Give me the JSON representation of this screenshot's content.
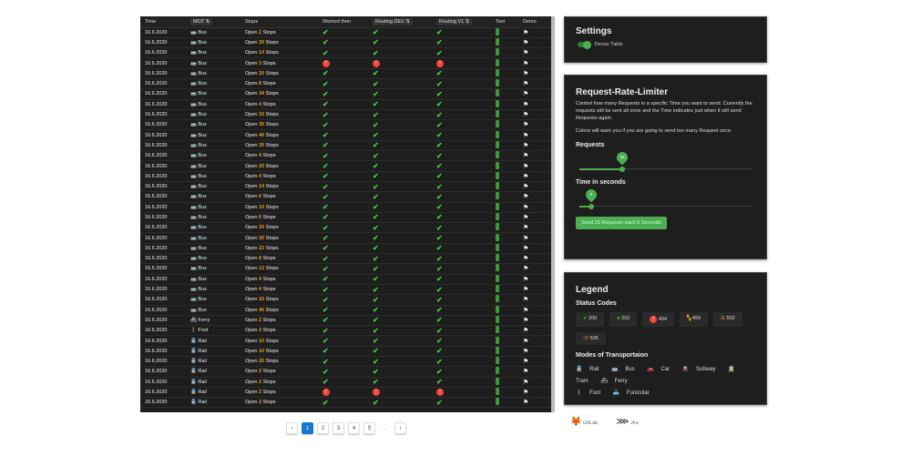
{
  "table": {
    "headers": [
      "Time",
      "MOT",
      "Stops",
      "Worked then",
      "Routing DEV",
      "Routing V1",
      "Test",
      "Demo"
    ],
    "open_label": "Open",
    "stops_label": "Stops",
    "rows": [
      [
        "16.6.2020",
        "Bus",
        2,
        "ok"
      ],
      [
        "16.6.2020",
        "Bus",
        20,
        "ok"
      ],
      [
        "16.6.2020",
        "Bus",
        14,
        "ok"
      ],
      [
        "16.6.2020",
        "Bus",
        3,
        "err"
      ],
      [
        "16.6.2020",
        "Bus",
        20,
        "ok"
      ],
      [
        "16.6.2020",
        "Bus",
        8,
        "ok"
      ],
      [
        "16.6.2020",
        "Bus",
        34,
        "ok"
      ],
      [
        "16.6.2020",
        "Bus",
        4,
        "ok"
      ],
      [
        "16.6.2020",
        "Bus",
        16,
        "ok"
      ],
      [
        "16.6.2020",
        "Bus",
        36,
        "ok"
      ],
      [
        "16.6.2020",
        "Bus",
        40,
        "ok"
      ],
      [
        "16.6.2020",
        "Bus",
        20,
        "ok"
      ],
      [
        "16.6.2020",
        "Bus",
        4,
        "ok"
      ],
      [
        "16.6.2020",
        "Bus",
        20,
        "ok"
      ],
      [
        "16.6.2020",
        "Bus",
        4,
        "ok"
      ],
      [
        "16.6.2020",
        "Bus",
        14,
        "ok"
      ],
      [
        "16.6.2020",
        "Bus",
        6,
        "ok"
      ],
      [
        "16.6.2020",
        "Bus",
        10,
        "ok"
      ],
      [
        "16.6.2020",
        "Bus",
        6,
        "ok"
      ],
      [
        "16.6.2020",
        "Bus",
        20,
        "ok"
      ],
      [
        "16.6.2020",
        "Bus",
        30,
        "ok"
      ],
      [
        "16.6.2020",
        "Bus",
        22,
        "ok"
      ],
      [
        "16.6.2020",
        "Bus",
        8,
        "ok"
      ],
      [
        "16.6.2020",
        "Bus",
        12,
        "ok"
      ],
      [
        "16.6.2020",
        "Bus",
        4,
        "ok"
      ],
      [
        "16.6.2020",
        "Bus",
        4,
        "ok"
      ],
      [
        "16.6.2020",
        "Bus",
        10,
        "ok"
      ],
      [
        "16.6.2020",
        "Bus",
        46,
        "ok"
      ],
      [
        "16.6.2020",
        "Ferry",
        2,
        "ok"
      ],
      [
        "16.6.2020",
        "Foot",
        3,
        "ok"
      ],
      [
        "16.6.2020",
        "Rail",
        10,
        "ok"
      ],
      [
        "16.6.2020",
        "Rail",
        10,
        "ok"
      ],
      [
        "16.6.2020",
        "Rail",
        20,
        "ok"
      ],
      [
        "16.6.2020",
        "Rail",
        2,
        "ok"
      ],
      [
        "16.6.2020",
        "Rail",
        2,
        "ok"
      ],
      [
        "16.6.2020",
        "Rail",
        2,
        "err"
      ],
      [
        "16.6.2020",
        "Rail",
        2,
        "ok"
      ]
    ]
  },
  "pagination": {
    "pages": [
      "1",
      "2",
      "3",
      "4",
      "5"
    ],
    "current": "1",
    "ellipsis": "..."
  },
  "settings": {
    "title": "Settings",
    "dense_label": "Dense Table",
    "dense_on": true
  },
  "limiter": {
    "title": "Request-Rate-Limiter",
    "desc1": "Control how many Requests in a specific Time you want to send. Currently the requests will be sent all once and the Time indicates just when it will send Requests again.",
    "desc2": "Colors will warn you if you are going to send too many Request once.",
    "requests_label": "Requests",
    "requests_value": "25",
    "requests_fraction": 0.25,
    "time_label": "Time in seconds",
    "time_value": "5",
    "time_fraction": 0.07,
    "button": "Send 25 Requests each 5 Seconds"
  },
  "legend": {
    "title": "Legend",
    "status_title": "Status Codes",
    "codes": [
      "200",
      "202",
      "404",
      "499",
      "502",
      "505"
    ],
    "modes_title": "Modes of Transportaion",
    "modes": [
      "Rail",
      "Bus",
      "Car",
      "Subway",
      "Tram",
      "Ferry",
      "Foot",
      "Funicular"
    ]
  },
  "links": [
    "GitLab",
    "Jira"
  ],
  "colors": {
    "ok": "#3ecf3e",
    "error": "#f44336",
    "accent": "#4caf50",
    "stops": "#f39c12"
  }
}
